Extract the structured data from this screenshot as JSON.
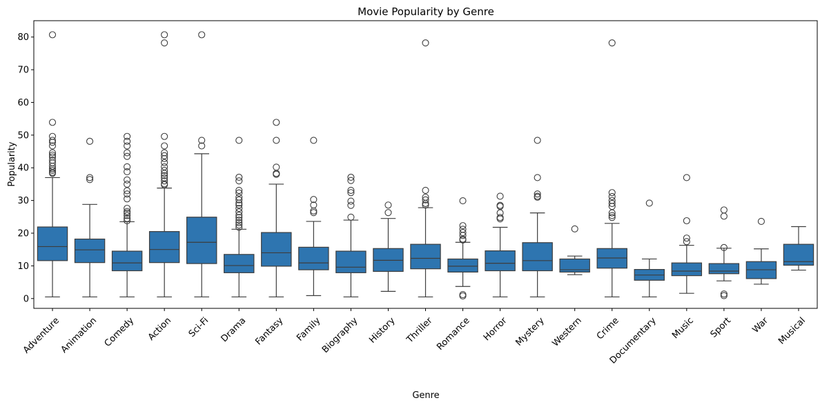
{
  "chart_data": {
    "type": "box",
    "title": "Movie Popularity by Genre",
    "xlabel": "Genre",
    "ylabel": "Popularity",
    "ylim": [
      -3,
      85
    ],
    "yticks": [
      0,
      10,
      20,
      30,
      40,
      50,
      60,
      70,
      80
    ],
    "grid": false,
    "color": "#2e75b0",
    "edge_color": "#3d3d3d",
    "categories": [
      "Adventure",
      "Animation",
      "Comedy",
      "Action",
      "Sci-Fi",
      "Drama",
      "Fantasy",
      "Family",
      "Biography",
      "History",
      "Thriller",
      "Romance",
      "Horror",
      "Mystery",
      "Western",
      "Crime",
      "Documentary",
      "Music",
      "Sport",
      "War",
      "Musical"
    ],
    "boxes": [
      {
        "whisker_low": 0.5,
        "q1": 11.6,
        "median": 15.9,
        "q3": 21.9,
        "whisker_high": 37.0,
        "outliers": [
          80.7,
          53.9,
          49.6,
          48.4,
          47.8,
          46.7,
          44.6,
          43.9,
          43.3,
          42.3,
          41.5,
          40.5,
          39.7,
          39.2,
          38.6,
          38.3
        ]
      },
      {
        "whisker_low": 0.5,
        "q1": 11.0,
        "median": 14.9,
        "q3": 18.2,
        "whisker_high": 28.8,
        "outliers": [
          48.1,
          37.0,
          36.4
        ]
      },
      {
        "whisker_low": 0.5,
        "q1": 8.5,
        "median": 10.9,
        "q3": 14.5,
        "whisker_high": 23.5,
        "outliers": [
          49.6,
          48.1,
          46.7,
          44.6,
          43.5,
          40.3,
          38.8,
          36.3,
          35.0,
          33.0,
          32.0,
          30.5,
          27.6,
          26.6,
          26.1,
          25.4,
          24.5,
          23.8
        ]
      },
      {
        "whisker_low": 0.5,
        "q1": 11.0,
        "median": 15.0,
        "q3": 20.5,
        "whisker_high": 33.8,
        "outliers": [
          80.7,
          78.2,
          49.6,
          46.7,
          44.6,
          43.7,
          42.8,
          41.6,
          40.3,
          39.2,
          38.3,
          37.6,
          36.9,
          36.0,
          35.1,
          34.8
        ]
      },
      {
        "whisker_low": 0.5,
        "q1": 10.7,
        "median": 17.2,
        "q3": 24.9,
        "whisker_high": 44.3,
        "outliers": [
          80.7,
          48.4,
          46.7
        ]
      },
      {
        "whisker_low": 0.5,
        "q1": 7.9,
        "median": 10.1,
        "q3": 13.5,
        "whisker_high": 21.2,
        "outliers": [
          48.4,
          37.1,
          36.0,
          33.1,
          32.3,
          31.0,
          30.2,
          29.2,
          28.6,
          27.6,
          26.5,
          25.5,
          24.8,
          24.0,
          23.2,
          22.5,
          21.8
        ]
      },
      {
        "whisker_low": 0.5,
        "q1": 9.9,
        "median": 14.0,
        "q3": 20.2,
        "whisker_high": 35.0,
        "outliers": [
          53.9,
          48.4,
          40.2,
          38.3,
          38.0
        ]
      },
      {
        "whisker_low": 0.9,
        "q1": 8.8,
        "median": 10.9,
        "q3": 15.7,
        "whisker_high": 23.6,
        "outliers": [
          48.4,
          30.3,
          28.6,
          26.8,
          26.3
        ]
      },
      {
        "whisker_low": 0.5,
        "q1": 7.9,
        "median": 9.6,
        "q3": 14.5,
        "whisker_high": 24.0,
        "outliers": [
          37.1,
          36.1,
          33.1,
          32.4,
          29.8,
          28.5,
          24.9
        ]
      },
      {
        "whisker_low": 2.2,
        "q1": 8.3,
        "median": 11.7,
        "q3": 15.3,
        "whisker_high": 24.5,
        "outliers": [
          28.6,
          26.3
        ]
      },
      {
        "whisker_low": 0.5,
        "q1": 9.1,
        "median": 12.3,
        "q3": 16.6,
        "whisker_high": 27.8,
        "outliers": [
          78.2,
          33.1,
          31.0,
          30.2,
          29.1,
          28.6
        ]
      },
      {
        "whisker_low": 3.7,
        "q1": 8.1,
        "median": 9.9,
        "q3": 12.1,
        "whisker_high": 17.2,
        "outliers": [
          29.9,
          22.3,
          21.2,
          20.2,
          19.3,
          18.2,
          17.9,
          1.2,
          0.8
        ]
      },
      {
        "whisker_low": 0.5,
        "q1": 8.5,
        "median": 10.8,
        "q3": 14.6,
        "whisker_high": 21.8,
        "outliers": [
          31.3,
          28.5,
          28.2,
          26.2,
          24.8,
          24.4
        ]
      },
      {
        "whisker_low": 0.5,
        "q1": 8.5,
        "median": 11.6,
        "q3": 17.1,
        "whisker_high": 26.2,
        "outliers": [
          48.4,
          37.0,
          32.0,
          31.3,
          31.0
        ]
      },
      {
        "whisker_low": 7.3,
        "q1": 8.1,
        "median": 8.8,
        "q3": 12.1,
        "whisker_high": 13.0,
        "outliers": [
          21.3
        ]
      },
      {
        "whisker_low": 0.5,
        "q1": 9.3,
        "median": 12.4,
        "q3": 15.3,
        "whisker_high": 23.0,
        "outliers": [
          78.2,
          32.4,
          31.2,
          30.0,
          29.1,
          28.2,
          26.2,
          25.4,
          24.8
        ]
      },
      {
        "whisker_low": 0.5,
        "q1": 5.6,
        "median": 7.2,
        "q3": 8.9,
        "whisker_high": 12.1,
        "outliers": [
          29.2
        ]
      },
      {
        "whisker_low": 1.6,
        "q1": 7.0,
        "median": 8.4,
        "q3": 10.9,
        "whisker_high": 16.3,
        "outliers": [
          37.0,
          23.8,
          18.5,
          17.4
        ]
      },
      {
        "whisker_low": 5.4,
        "q1": 7.6,
        "median": 8.4,
        "q3": 10.7,
        "whisker_high": 15.4,
        "outliers": [
          27.1,
          25.2,
          15.6,
          1.4,
          0.9
        ]
      },
      {
        "whisker_low": 4.4,
        "q1": 6.1,
        "median": 8.8,
        "q3": 11.3,
        "whisker_high": 15.2,
        "outliers": [
          23.6
        ]
      },
      {
        "whisker_low": 8.7,
        "q1": 10.2,
        "median": 11.3,
        "q3": 16.6,
        "whisker_high": 22.0,
        "outliers": []
      }
    ]
  }
}
